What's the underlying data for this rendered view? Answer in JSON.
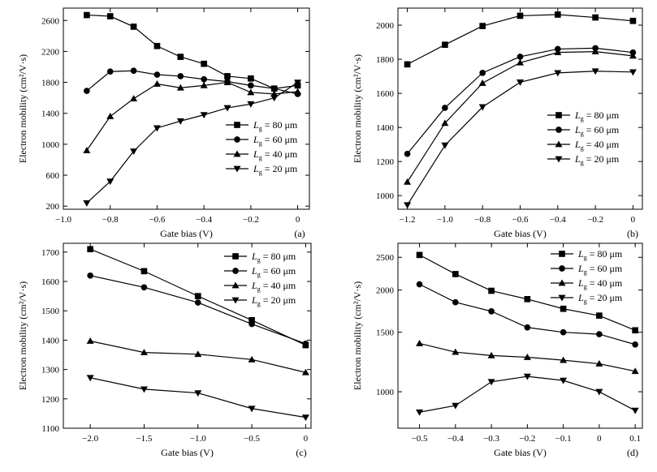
{
  "figure": {
    "background": "#ffffff",
    "ink": "#000000"
  },
  "chart_data": [
    {
      "type": "line",
      "panel_label": "(a)",
      "xlabel": "Gate bias (V)",
      "ylabel": "Electron mobility (cm²/V·s)",
      "xlim": [
        -1.0,
        0.05
      ],
      "ylim": [
        160,
        2760
      ],
      "xticks": [
        -1.0,
        -0.8,
        -0.6,
        -0.4,
        -0.2,
        0
      ],
      "xtick_labels": [
        "−1.0",
        "−0.8",
        "−0.6",
        "−0.4",
        "−0.2",
        "0"
      ],
      "yticks": [
        200,
        600,
        1000,
        1400,
        1800,
        2200,
        2600
      ],
      "ytick_labels": [
        "200",
        "600",
        "1000",
        "1400",
        "1800",
        "2200",
        "2600"
      ],
      "legend_position": "right-middle",
      "x": [
        -0.9,
        -0.8,
        -0.7,
        -0.6,
        -0.5,
        -0.4,
        -0.3,
        -0.2,
        -0.1,
        0
      ],
      "series": [
        {
          "name": "Lg = 80 μm",
          "label_sub": "g",
          "label_rest": " = 80 μm",
          "marker": "square",
          "values": [
            2670,
            2655,
            2520,
            2270,
            2130,
            2040,
            1880,
            1850,
            1720,
            1760
          ]
        },
        {
          "name": "Lg = 60 μm",
          "label_sub": "g",
          "label_rest": " = 60 μm",
          "marker": "circle",
          "values": [
            1690,
            1940,
            1950,
            1900,
            1880,
            1840,
            1810,
            1760,
            1720,
            1650
          ]
        },
        {
          "name": "Lg = 40 μm",
          "label_sub": "g",
          "label_rest": " = 40 μm",
          "marker": "triangle-up",
          "values": [
            920,
            1360,
            1590,
            1780,
            1730,
            1760,
            1800,
            1670,
            1650,
            1680
          ]
        },
        {
          "name": "Lg = 20 μm",
          "label_sub": "g",
          "label_rest": " = 20 μm",
          "marker": "triangle-down",
          "values": [
            240,
            520,
            910,
            1210,
            1300,
            1380,
            1470,
            1520,
            1600,
            1800
          ]
        }
      ]
    },
    {
      "type": "line",
      "panel_label": "(b)",
      "xlabel": "Gate bias (V)",
      "ylabel": "Electron mobility (cm²/V·s)",
      "xlim": [
        -1.25,
        0.05
      ],
      "ylim": [
        920,
        2100
      ],
      "xticks": [
        -1.2,
        -1.0,
        -0.8,
        -0.6,
        -0.4,
        -0.2,
        0
      ],
      "xtick_labels": [
        "−1.2",
        "−1.0",
        "−0.8",
        "−0.6",
        "−0.4",
        "−0.2",
        "0"
      ],
      "yticks": [
        1000,
        1200,
        1400,
        1600,
        1800,
        2000
      ],
      "ytick_labels": [
        "1000",
        "1200",
        "1400",
        "1600",
        "1800",
        "2000"
      ],
      "legend_position": "right-middle",
      "x": [
        -1.2,
        -1.0,
        -0.8,
        -0.6,
        -0.4,
        -0.2,
        0
      ],
      "series": [
        {
          "name": "Lg = 80 μm",
          "label_sub": "g",
          "label_rest": " = 80 μm",
          "marker": "square",
          "values": [
            1770,
            1885,
            1995,
            2055,
            2062,
            2045,
            2025
          ]
        },
        {
          "name": "Lg = 60 μm",
          "label_sub": "g",
          "label_rest": " = 60 μm",
          "marker": "circle",
          "values": [
            1245,
            1515,
            1720,
            1815,
            1860,
            1865,
            1840
          ]
        },
        {
          "name": "Lg = 40 μm",
          "label_sub": "g",
          "label_rest": " = 40 μm",
          "marker": "triangle-up",
          "values": [
            1080,
            1425,
            1660,
            1780,
            1840,
            1845,
            1820
          ]
        },
        {
          "name": "Lg = 20 μm",
          "label_sub": "g",
          "label_rest": " = 20 μm",
          "marker": "triangle-down",
          "values": [
            945,
            1295,
            1520,
            1665,
            1720,
            1730,
            1725
          ]
        }
      ]
    },
    {
      "type": "line",
      "panel_label": "(c)",
      "xlabel": "Gate bias (V)",
      "ylabel": "Electron mobility (cm²/V·s)",
      "xlim": [
        -2.25,
        0.05
      ],
      "ylim": [
        1100,
        1730
      ],
      "xticks": [
        -2.0,
        -1.5,
        -1.0,
        -0.5,
        0
      ],
      "xtick_labels": [
        "−2.0",
        "−1.5",
        "−1.0",
        "−0.5",
        "0"
      ],
      "yticks": [
        1100,
        1200,
        1300,
        1400,
        1500,
        1600,
        1700
      ],
      "ytick_labels": [
        "1100",
        "1200",
        "1300",
        "1400",
        "1500",
        "1600",
        "1700"
      ],
      "legend_position": "top-right",
      "x": [
        -2.0,
        -1.5,
        -1.0,
        -0.5,
        0
      ],
      "series": [
        {
          "name": "Lg = 80 μm",
          "label_sub": "g",
          "label_rest": " = 80 μm",
          "marker": "square",
          "values": [
            1710,
            1635,
            1550,
            1468,
            1383
          ]
        },
        {
          "name": "Lg = 60 μm",
          "label_sub": "g",
          "label_rest": " = 60 μm",
          "marker": "circle",
          "values": [
            1620,
            1580,
            1528,
            1455,
            1388
          ]
        },
        {
          "name": "Lg = 40 μm",
          "label_sub": "g",
          "label_rest": " = 40 μm",
          "marker": "triangle-up",
          "values": [
            1397,
            1358,
            1352,
            1334,
            1290
          ]
        },
        {
          "name": "Lg = 20 μm",
          "label_sub": "g",
          "label_rest": " = 20 μm",
          "marker": "triangle-down",
          "values": [
            1272,
            1233,
            1220,
            1167,
            1137
          ]
        }
      ]
    },
    {
      "type": "line",
      "panel_label": "(d)",
      "xlabel": "Gate bias (V)",
      "ylabel": "Electron mobility (cm²/V·s)",
      "yscale": "log",
      "xlim": [
        -0.56,
        0.12
      ],
      "ylim": [
        780,
        2750
      ],
      "xticks": [
        -0.5,
        -0.4,
        -0.3,
        -0.2,
        -0.1,
        0,
        0.1
      ],
      "xtick_labels": [
        "−0.5",
        "−0.4",
        "−0.3",
        "−0.2",
        "−0.1",
        "0",
        "0.1"
      ],
      "yticks": [
        1000,
        1500,
        2000,
        2500
      ],
      "ytick_labels": [
        "1000",
        "1500",
        "2000",
        "2500"
      ],
      "legend_position": "top-right",
      "x": [
        -0.5,
        -0.4,
        -0.3,
        -0.2,
        -0.1,
        0,
        0.1
      ],
      "series": [
        {
          "name": "Lg = 80 μm",
          "label_sub": "g",
          "label_rest": " = 80 μm",
          "marker": "square",
          "values": [
            2540,
            2230,
            1990,
            1880,
            1760,
            1680,
            1520
          ]
        },
        {
          "name": "Lg = 60 μm",
          "label_sub": "g",
          "label_rest": " = 60 μm",
          "marker": "circle",
          "values": [
            2080,
            1840,
            1730,
            1550,
            1500,
            1480,
            1380
          ]
        },
        {
          "name": "Lg = 40 μm",
          "label_sub": "g",
          "label_rest": " = 40 μm",
          "marker": "triangle-up",
          "values": [
            1390,
            1310,
            1280,
            1265,
            1240,
            1210,
            1150
          ]
        },
        {
          "name": "Lg = 20 μm",
          "label_sub": "g",
          "label_rest": " = 20 μm",
          "marker": "triangle-down",
          "values": [
            870,
            910,
            1070,
            1110,
            1080,
            1000,
            880
          ]
        }
      ]
    }
  ]
}
